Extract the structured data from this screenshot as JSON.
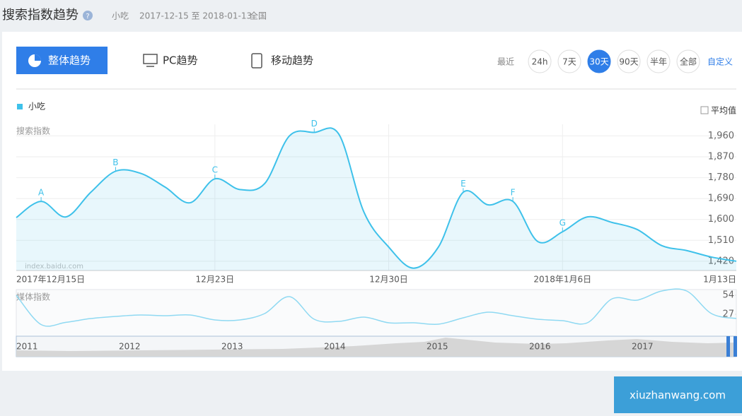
{
  "header": {
    "title": "搜索指数趋势",
    "keyword": "小吃",
    "date_range": "2017-12-15 至 2018-01-13",
    "region": "全国"
  },
  "tabs": [
    "整体趋势",
    "PC趋势",
    "移动趋势"
  ],
  "range": {
    "label": "最近",
    "options": [
      "24h",
      "7天",
      "30天",
      "90天",
      "半年",
      "全部"
    ],
    "active": "30天",
    "custom": "自定义"
  },
  "average_label": "平均值",
  "watermark": "index.baidu.com",
  "overview_years": [
    "2011",
    "2012",
    "2013",
    "2014",
    "2015",
    "2016",
    "2017"
  ],
  "footer": "xiuzhanwang.com",
  "chart_data": [
    {
      "type": "line",
      "y_label": "搜索指数",
      "categories": [
        "2017年12月15日",
        null,
        null,
        null,
        null,
        null,
        null,
        null,
        "12月23日",
        null,
        null,
        null,
        null,
        null,
        null,
        "12月30日",
        null,
        null,
        null,
        null,
        null,
        null,
        "2018年1月6日",
        null,
        null,
        null,
        null,
        null,
        null,
        "1月13日"
      ],
      "series": [
        {
          "name": "小吃",
          "color": "#3ec1ea",
          "values": [
            1608,
            1678,
            1611,
            1717,
            1808,
            1799,
            1739,
            1672,
            1775,
            1729,
            1754,
            1960,
            1975,
            1966,
            1632,
            1481,
            1390,
            1481,
            1717,
            1663,
            1678,
            1505,
            1547,
            1611,
            1587,
            1557,
            1487,
            1466,
            1438,
            1420
          ]
        }
      ],
      "ylim": [
        1380,
        2010
      ],
      "yticks": [
        {
          "value": 1420,
          "label": "1,420"
        },
        {
          "value": 1510,
          "label": "1,510"
        },
        {
          "value": 1600,
          "label": "1,600"
        },
        {
          "value": 1690,
          "label": "1,690"
        },
        {
          "value": 1780,
          "label": "1,780"
        },
        {
          "value": 1870,
          "label": "1,870"
        },
        {
          "value": 1960,
          "label": "1,960"
        }
      ],
      "grid": true,
      "annotations": [
        {
          "label": "A",
          "index": 1
        },
        {
          "label": "B",
          "index": 4
        },
        {
          "label": "C",
          "index": 8
        },
        {
          "label": "D",
          "index": 12
        },
        {
          "label": "E",
          "index": 18
        },
        {
          "label": "F",
          "index": 20
        },
        {
          "label": "G",
          "index": 22
        }
      ]
    },
    {
      "type": "line",
      "y_label": "媒体指数",
      "series": [
        {
          "color": "#8fd9f2",
          "values": [
            54,
            12.5,
            15.6,
            21,
            24,
            26,
            25,
            26,
            19,
            19,
            28,
            52,
            20,
            17,
            23,
            15,
            15,
            13,
            22,
            30,
            25,
            20,
            18,
            15,
            49,
            47,
            60,
            60,
            28,
            21
          ]
        }
      ],
      "ylim": [
        0,
        62
      ],
      "yticks": [
        27,
        54
      ]
    }
  ]
}
